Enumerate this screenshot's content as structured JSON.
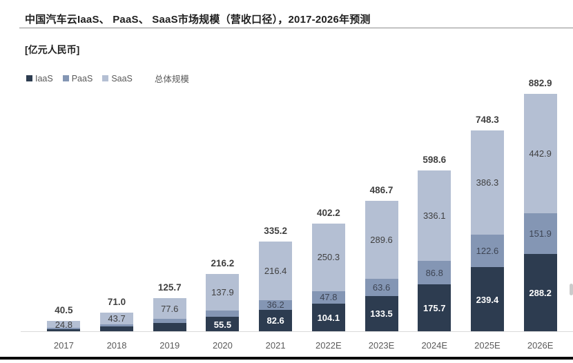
{
  "header": {
    "title": "中国汽车云IaaS、 PaaS、 SaaS市场规模（营收口径），2017-2026年预测",
    "unit_label": "[亿元人民币]"
  },
  "legend": {
    "items": [
      {
        "label": "IaaS",
        "color": "#2d3c50"
      },
      {
        "label": "PaaS",
        "color": "#8496b4"
      },
      {
        "label": "SaaS",
        "color": "#b4bfd3"
      }
    ],
    "total_label": "总体规模"
  },
  "chart_data": {
    "type": "bar",
    "stacked": true,
    "title": "中国汽车云IaaS、 PaaS、 SaaS市场规模（营收口径），2017-2026年预测",
    "ylabel": "亿元人民币",
    "ylim": [
      0,
      920
    ],
    "grid": false,
    "legend_position": "top-left",
    "categories": [
      "2017",
      "2018",
      "2019",
      "2020",
      "2021",
      "2022E",
      "2023E",
      "2024E",
      "2025E",
      "2026E"
    ],
    "series": [
      {
        "name": "IaaS",
        "color": "#2d3c50",
        "label_color": "#ffffff",
        "label_weight": "600",
        "values": [
          11.5,
          19.5,
          34.0,
          55.5,
          82.6,
          104.1,
          133.5,
          175.7,
          239.4,
          288.2
        ],
        "labels": [
          "",
          "",
          "",
          "55.5",
          "82.6",
          "104.1",
          "133.5",
          "175.7",
          "239.4",
          "288.2"
        ]
      },
      {
        "name": "PaaS",
        "color": "#8496b4",
        "label_color": "#3d4453",
        "label_weight": "400",
        "values": [
          4.2,
          7.8,
          14.1,
          22.8,
          36.2,
          47.8,
          63.6,
          86.8,
          122.6,
          151.9
        ],
        "labels": [
          "",
          "",
          "",
          "",
          "36.2",
          "47.8",
          "63.6",
          "86.8",
          "122.6",
          "151.9"
        ]
      },
      {
        "name": "SaaS",
        "color": "#b4bfd3",
        "label_color": "#3f3f3f",
        "label_weight": "400",
        "values": [
          24.8,
          43.7,
          77.6,
          137.9,
          216.4,
          250.3,
          289.6,
          336.1,
          386.3,
          442.9
        ],
        "labels": [
          "24.8",
          "43.7",
          "77.6",
          "137.9",
          "216.4",
          "250.3",
          "289.6",
          "336.1",
          "386.3",
          "442.9"
        ]
      }
    ],
    "totals": [
      "40.5",
      "71.0",
      "125.7",
      "216.2",
      "335.2",
      "402.2",
      "486.7",
      "598.6",
      "748.3",
      "882.9"
    ]
  }
}
